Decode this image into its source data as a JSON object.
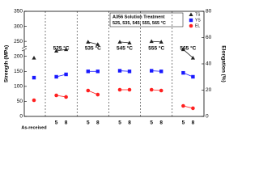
{
  "chart_data": {
    "type": "line",
    "annotation": [
      "A356 Solution Treatment",
      "525, 535, 545, 555, 565 °C"
    ],
    "y_label": "Strength (MPa)",
    "y2_label": "Elongation (%)",
    "categories": [
      "As-received",
      "5",
      "8",
      "5",
      "8",
      "5",
      "8",
      "5",
      "8",
      "5",
      "8"
    ],
    "groups": [
      "525 °C",
      "535 °C",
      "545 °C",
      "555 °C",
      "565 °C"
    ],
    "series": [
      {
        "name": "TS",
        "color": "#222222",
        "marker": "triangle",
        "values": [
          195,
          218,
          223,
          248,
          240,
          248,
          245,
          250,
          248,
          223,
          195
        ]
      },
      {
        "name": "YS",
        "color": "#1a1aff",
        "marker": "square",
        "values": [
          129,
          132,
          140,
          150,
          150,
          152,
          150,
          152,
          150,
          145,
          132
        ]
      },
      {
        "name": "EL",
        "color": "#ff2020",
        "marker": "circle",
        "axis": "y2",
        "values": [
          12.3,
          16,
          14.8,
          19.7,
          16.6,
          20.3,
          20.3,
          20.3,
          19.7,
          8,
          6.2
        ]
      }
    ],
    "ylim": [
      0,
      350
    ],
    "yticks": [
      0,
      50,
      100,
      150,
      200,
      250,
      300,
      350
    ],
    "y2lim": [
      0,
      80
    ],
    "y2ticks": [
      0,
      20,
      40,
      60,
      80
    ]
  }
}
